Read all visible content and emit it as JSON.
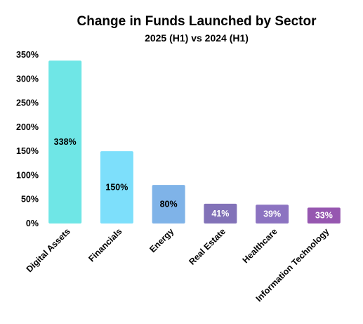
{
  "chart_data": {
    "type": "bar",
    "title": "Change in Funds Launched by Sector",
    "subtitle": "2025 (H1) vs 2024 (H1)",
    "xlabel": "",
    "ylabel": "",
    "categories": [
      "Digital Assets",
      "Financials",
      "Energy",
      "Real Estate",
      "Healthcare",
      "Information Technology"
    ],
    "values": [
      338,
      150,
      80,
      41,
      39,
      33
    ],
    "data_labels": [
      "338%",
      "150%",
      "80%",
      "41%",
      "39%",
      "33%"
    ],
    "colors": [
      "#6fe6e6",
      "#7ddffb",
      "#7fb3e8",
      "#8272b8",
      "#8c73c1",
      "#9657b0"
    ],
    "label_colors": [
      "#000000",
      "#000000",
      "#000000",
      "#ffffff",
      "#ffffff",
      "#ffffff"
    ],
    "ylim": [
      0,
      350
    ],
    "yticks": [
      0,
      50,
      100,
      150,
      200,
      250,
      300,
      350
    ],
    "ytick_labels": [
      "0%",
      "50%",
      "100%",
      "150%",
      "200%",
      "250%",
      "300%",
      "350%"
    ],
    "grid": false,
    "legend": "none"
  }
}
